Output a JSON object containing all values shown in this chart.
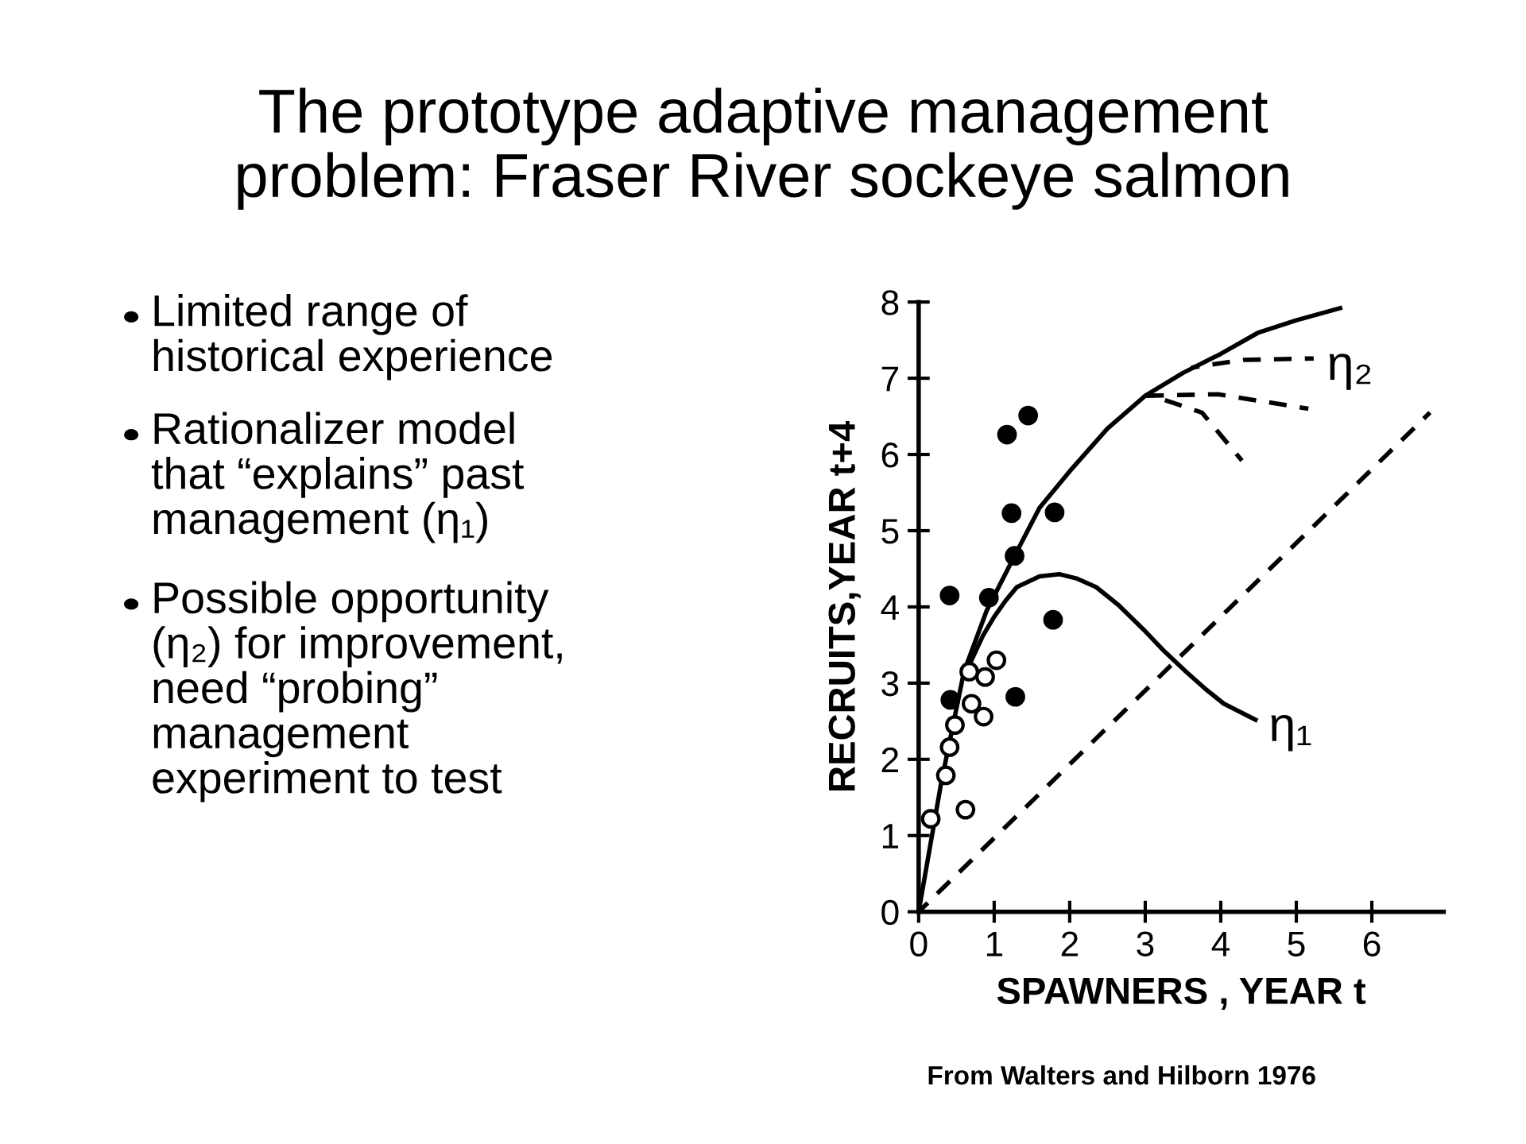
{
  "chart_data": {
    "type": "scatter",
    "title": "The prototype adaptive management\nproblem: Fraser River sockeye salmon",
    "xlabel": "SPAWNERS , YEAR t",
    "ylabel": "RECRUITS,YEAR t+4",
    "xlim": [
      0,
      6.95
    ],
    "ylim": [
      0,
      8
    ],
    "xticks": [
      0,
      1,
      2,
      3,
      4,
      5,
      6
    ],
    "yticks": [
      0,
      1,
      2,
      3,
      4,
      5,
      6,
      7,
      8
    ],
    "grid": false,
    "legend": false,
    "series": [
      {
        "marker": "circle",
        "color": "#000000",
        "x": [
          1.17,
          1.45,
          1.23,
          1.8,
          1.27,
          0.41,
          0.93,
          1.78,
          0.42,
          1.28
        ],
        "values": [
          6.26,
          6.51,
          5.23,
          5.24,
          4.67,
          4.15,
          4.12,
          3.83,
          2.78,
          2.82
        ]
      },
      {
        "marker": "circle",
        "color": "#ffffff",
        "x": [
          1.03,
          0.88,
          0.86,
          0.7,
          0.48,
          0.41,
          0.36,
          0.16,
          0.62,
          0.67
        ],
        "values": [
          3.3,
          3.08,
          2.56,
          2.73,
          2.45,
          2.16,
          1.79,
          1.22,
          1.34,
          3.15
        ]
      },
      {
        "type": "line",
        "line_style": "solid",
        "color": "#000000",
        "x": [
          0,
          0.3,
          0.6,
          0.9,
          1.27,
          1.6,
          2,
          2.5,
          3,
          3.5,
          4,
          4.5,
          5,
          5.58
        ],
        "values": [
          0,
          1.7,
          3.15,
          3.95,
          4.67,
          5.3,
          5.78,
          6.34,
          6.77,
          7.07,
          7.32,
          7.6,
          7.76,
          7.92
        ]
      },
      {
        "type": "line",
        "line_style": "solid",
        "color": "#000000",
        "x": [
          0.7,
          0.85,
          1,
          1.15,
          1.3,
          1.6,
          1.86,
          2.1,
          2.35,
          2.65,
          2.98,
          3.25,
          3.54,
          3.8,
          4.04,
          4.46
        ],
        "values": [
          3.3,
          3.62,
          3.87,
          4.08,
          4.26,
          4.4,
          4.43,
          4.37,
          4.26,
          4.02,
          3.7,
          3.42,
          3.15,
          2.92,
          2.73,
          2.52
        ]
      },
      {
        "type": "line",
        "line_style": "dashed",
        "color": "#000000",
        "x": [
          3.61,
          4.3,
          5.23
        ],
        "values": [
          7.14,
          7.24,
          7.26
        ]
      },
      {
        "type": "line",
        "line_style": "dashed",
        "color": "#000000",
        "x": [
          3,
          3.96,
          5.16
        ],
        "values": [
          6.77,
          6.79,
          6.6
        ]
      },
      {
        "type": "line",
        "line_style": "dashed",
        "color": "#000000",
        "x": [
          3.12,
          3.75,
          4.28
        ],
        "values": [
          6.76,
          6.55,
          5.92
        ]
      },
      {
        "type": "line",
        "line_style": "dashed",
        "color": "#000000",
        "x": [
          0,
          6.77
        ],
        "values": [
          0,
          6.55
        ]
      }
    ],
    "annotations": [
      {
        "text": "η₂",
        "x": 5.23,
        "y": 7.26
      },
      {
        "text": "η₁",
        "x": 4.46,
        "y": 2.52
      },
      "Limited range of\nhistorical experience",
      "Rationalizer model\nthat “explains” past\nmanagement (η₁)",
      "Possible opportunity\n(η₂) for improvement,\nneed “probing”\nmanagement\nexperiment to test",
      "From Walters and Hilborn 1976"
    ]
  }
}
